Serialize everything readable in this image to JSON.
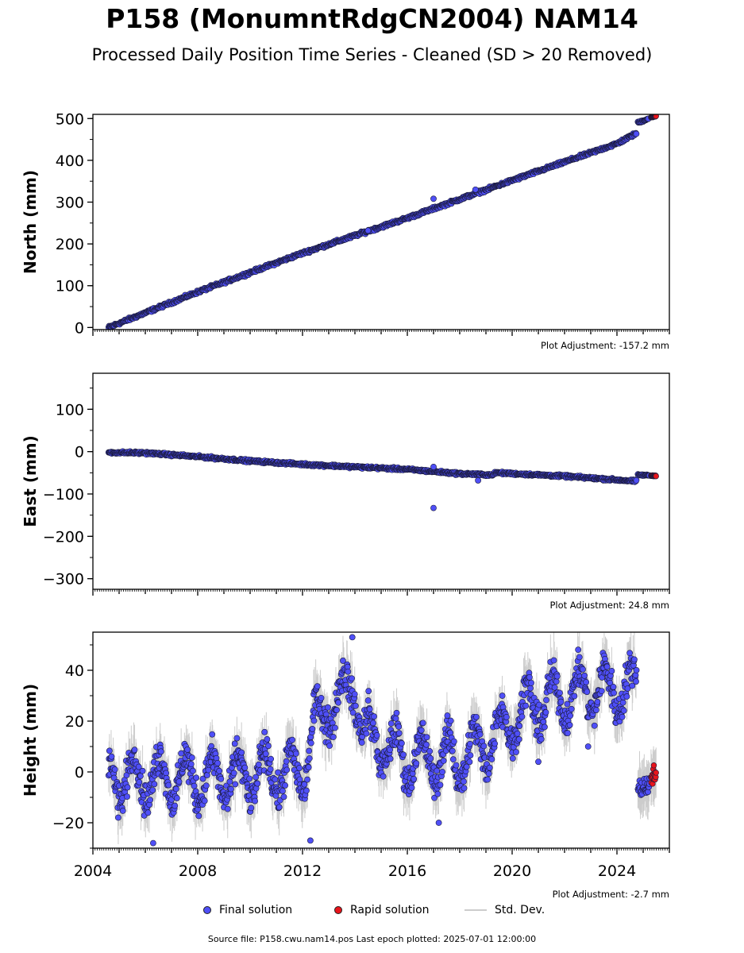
{
  "title": "P158 (MonumntRdgCN2004) NAM14",
  "subtitle": "Processed Daily Position Time Series - Cleaned (SD > 20 Removed)",
  "colors": {
    "final": "#4f4ff7",
    "rapid": "#e8141b",
    "stddev": "#cccccc",
    "outline": "#1a1a3a"
  },
  "legend": {
    "final": "Final solution",
    "rapid": "Rapid solution",
    "stddev": "Std. Dev."
  },
  "footer": "Source file: P158.cwu.nam14.pos  Last epoch plotted: 2025-07-01 12:00:00",
  "chart_data": [
    {
      "type": "scatter",
      "panel": "north",
      "ylabel": "North (mm)",
      "adjustment": "Plot Adjustment: -157.2 mm",
      "xlim": [
        2004.0,
        2026.0
      ],
      "ylim": [
        -5,
        510
      ],
      "yticks": [
        0,
        100,
        200,
        300,
        400,
        500
      ],
      "ytick_labels": [
        "0",
        "100",
        "200",
        "300",
        "400",
        "500"
      ],
      "show_x_labels": false,
      "series": [
        {
          "name": "Final solution",
          "trend": [
            [
              2004.6,
              0
            ],
            [
              2008.0,
              85
            ],
            [
              2012.0,
              178
            ],
            [
              2016.0,
              262
            ],
            [
              2020.0,
              352
            ],
            [
              2024.0,
              440
            ],
            [
              2024.75,
              465
            ]
          ],
          "noise": 3
        },
        {
          "name": "Final solution",
          "trend": [
            [
              2024.8,
              490
            ],
            [
              2025.2,
              500
            ]
          ],
          "noise": 2
        },
        {
          "name": "Rapid solution",
          "trend": [
            [
              2025.3,
              503
            ],
            [
              2025.5,
              506
            ]
          ],
          "noise": 1
        }
      ],
      "outliers": [
        [
          2017.0,
          308
        ],
        [
          2014.5,
          232
        ],
        [
          2018.6,
          330
        ]
      ]
    },
    {
      "type": "scatter",
      "panel": "east",
      "ylabel": "East (mm)",
      "adjustment": "Plot Adjustment: 24.8 mm",
      "xlim": [
        2004.0,
        2026.0
      ],
      "ylim": [
        -325,
        185
      ],
      "yticks": [
        -300,
        -200,
        -100,
        0,
        100
      ],
      "ytick_labels": [
        "−300",
        "−200",
        "−100",
        "0",
        "100"
      ],
      "show_x_labels": false,
      "series": [
        {
          "name": "Final solution",
          "trend": [
            [
              2004.6,
              -2
            ],
            [
              2006.0,
              -3
            ],
            [
              2008.0,
              -12
            ],
            [
              2010.0,
              -22
            ],
            [
              2012.0,
              -30
            ],
            [
              2014.0,
              -36
            ],
            [
              2016.0,
              -42
            ],
            [
              2018.0,
              -52
            ],
            [
              2019.2,
              -55
            ],
            [
              2019.4,
              -50
            ],
            [
              2022.0,
              -58
            ],
            [
              2024.75,
              -70
            ]
          ],
          "noise": 2.5
        },
        {
          "name": "Final solution",
          "trend": [
            [
              2024.8,
              -55
            ],
            [
              2025.25,
              -56
            ]
          ],
          "noise": 1.5
        },
        {
          "name": "Rapid solution",
          "trend": [
            [
              2025.3,
              -57
            ],
            [
              2025.5,
              -57
            ]
          ],
          "noise": 1
        }
      ],
      "outliers": [
        [
          2017.0,
          -133
        ],
        [
          2017.0,
          -36
        ],
        [
          2018.7,
          -68
        ]
      ]
    },
    {
      "type": "scatter",
      "panel": "height",
      "ylabel": "Height (mm)",
      "adjustment": "Plot Adjustment: -2.7 mm",
      "xlim": [
        2004.0,
        2026.0
      ],
      "ylim": [
        -30,
        55
      ],
      "yticks": [
        -20,
        0,
        20,
        40
      ],
      "ytick_labels": [
        "−20",
        "0",
        "20",
        "40"
      ],
      "xticks": [
        2004,
        2008,
        2012,
        2016,
        2020,
        2024
      ],
      "xtick_labels": [
        "2004",
        "2008",
        "2012",
        "2016",
        "2020",
        "2024"
      ],
      "show_x_labels": true,
      "series": [
        {
          "name": "Final solution",
          "trend": [
            [
              2004.6,
              -2
            ],
            [
              2008.0,
              -3
            ],
            [
              2012.0,
              0
            ],
            [
              2012.5,
              20
            ],
            [
              2013.5,
              30
            ],
            [
              2014.0,
              35
            ],
            [
              2014.3,
              15
            ],
            [
              2016.0,
              5
            ],
            [
              2018.0,
              5
            ],
            [
              2019.5,
              15
            ],
            [
              2020.5,
              25
            ],
            [
              2022.0,
              30
            ],
            [
              2023.0,
              32
            ],
            [
              2024.75,
              33
            ]
          ],
          "noise": 6,
          "seasonal": 9
        },
        {
          "name": "Final solution",
          "trend": [
            [
              2024.8,
              -5
            ],
            [
              2025.25,
              -6
            ]
          ],
          "noise": 4,
          "seasonal": 0
        },
        {
          "name": "Rapid solution",
          "trend": [
            [
              2025.3,
              -2
            ],
            [
              2025.5,
              0
            ]
          ],
          "noise": 3,
          "seasonal": 0
        }
      ],
      "outliers": [
        [
          2006.3,
          -28
        ],
        [
          2017.2,
          -20
        ],
        [
          2012.3,
          -27
        ],
        [
          2021.0,
          4
        ],
        [
          2022.9,
          10
        ],
        [
          2013.9,
          53
        ]
      ]
    }
  ]
}
